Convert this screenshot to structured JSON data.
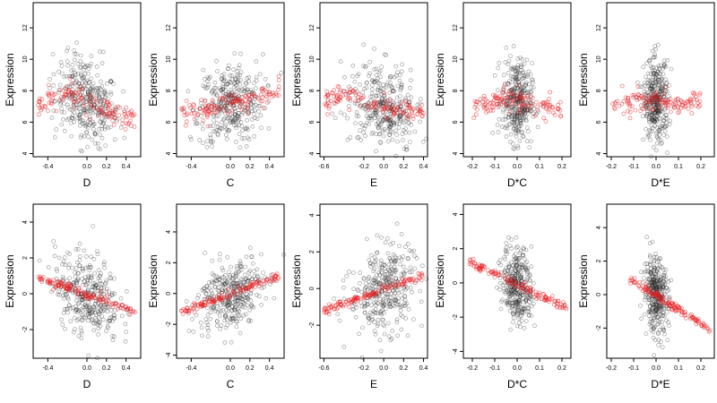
{
  "colors": {
    "observed": "#222222",
    "fitted": "#e8191e",
    "frame": "#000000"
  },
  "chart_data": [
    {
      "type": "scatter",
      "xlabel": "D",
      "ylabel": "Expression",
      "xlim": [
        -0.55,
        0.55
      ],
      "ylim": [
        3.8,
        13.6
      ],
      "x_ticks": [
        -0.4,
        0.0,
        0.2,
        0.4
      ],
      "x_tick_labels": [
        "-0.4",
        "0.0",
        "0.2",
        "0.4"
      ],
      "y_ticks": [
        4,
        6,
        8,
        10,
        12
      ],
      "y_tick_labels": [
        "4",
        "6",
        "8",
        "10",
        "12"
      ],
      "series": [
        {
          "role": "observed",
          "color": "#222222"
        },
        {
          "role": "fitted",
          "color": "#e8191e"
        }
      ],
      "fit": {
        "kind": "profile",
        "points": [
          [
            -0.5,
            7.0
          ],
          [
            -0.4,
            7.3
          ],
          [
            -0.3,
            7.5
          ],
          [
            -0.2,
            7.9
          ],
          [
            -0.1,
            7.8
          ],
          [
            0.0,
            7.3
          ],
          [
            0.1,
            7.0
          ],
          [
            0.2,
            6.8
          ],
          [
            0.3,
            6.5
          ],
          [
            0.4,
            6.3
          ],
          [
            0.5,
            6.2
          ]
        ]
      },
      "cloud": {
        "x_center": 0.0,
        "x_spread": 0.3,
        "y_spread": 1.3,
        "n": 350
      }
    },
    {
      "type": "scatter",
      "xlabel": "C",
      "ylabel": "Expression",
      "xlim": [
        -0.55,
        0.55
      ],
      "ylim": [
        3.8,
        13.6
      ],
      "x_ticks": [
        -0.4,
        0.0,
        0.2,
        0.4
      ],
      "x_tick_labels": [
        "-0.4",
        "0.0",
        "0.2",
        "0.4"
      ],
      "y_ticks": [
        4,
        6,
        8,
        10,
        12
      ],
      "y_tick_labels": [
        "4",
        "6",
        "8",
        "10",
        "12"
      ],
      "series": [
        {
          "role": "observed",
          "color": "#222222"
        },
        {
          "role": "fitted",
          "color": "#e8191e"
        }
      ],
      "fit": {
        "kind": "profile",
        "points": [
          [
            -0.5,
            6.5
          ],
          [
            -0.4,
            6.6
          ],
          [
            -0.3,
            6.8
          ],
          [
            -0.2,
            6.9
          ],
          [
            -0.1,
            7.0
          ],
          [
            0.0,
            7.2
          ],
          [
            0.1,
            7.3
          ],
          [
            0.2,
            7.4
          ],
          [
            0.3,
            7.6
          ],
          [
            0.4,
            7.8
          ],
          [
            0.5,
            8.1
          ]
        ]
      },
      "cloud": {
        "x_center": 0.0,
        "x_spread": 0.3,
        "y_spread": 1.3,
        "n": 350
      }
    },
    {
      "type": "scatter",
      "xlabel": "E",
      "ylabel": "Expression",
      "xlim": [
        -0.64,
        0.44
      ],
      "ylim": [
        3.8,
        13.6
      ],
      "x_ticks": [
        -0.6,
        -0.2,
        0.0,
        0.2,
        0.4
      ],
      "x_tick_labels": [
        "-0.6",
        "-0.2",
        "0.0",
        "0.2",
        "0.4"
      ],
      "y_ticks": [
        4,
        6,
        8,
        10,
        12
      ],
      "y_tick_labels": [
        "4",
        "6",
        "8",
        "10",
        "12"
      ],
      "series": [
        {
          "role": "observed",
          "color": "#222222"
        },
        {
          "role": "fitted",
          "color": "#e8191e"
        }
      ],
      "fit": {
        "kind": "profile",
        "points": [
          [
            -0.6,
            7.2
          ],
          [
            -0.5,
            7.6
          ],
          [
            -0.4,
            7.7
          ],
          [
            -0.3,
            7.6
          ],
          [
            -0.2,
            7.4
          ],
          [
            -0.1,
            7.1
          ],
          [
            0.0,
            6.9
          ],
          [
            0.1,
            6.8
          ],
          [
            0.2,
            6.6
          ],
          [
            0.3,
            6.5
          ],
          [
            0.4,
            6.4
          ]
        ]
      },
      "cloud": {
        "x_center": 0.0,
        "x_spread": 0.3,
        "y_spread": 1.3,
        "n": 350
      }
    },
    {
      "type": "scatter",
      "xlabel": "D*C",
      "ylabel": "Expression",
      "xlim": [
        -0.24,
        0.24
      ],
      "ylim": [
        3.8,
        13.6
      ],
      "x_ticks": [
        -0.2,
        -0.1,
        0.0,
        0.1,
        0.2
      ],
      "x_tick_labels": [
        "-0.2",
        "-0.1",
        "0.0",
        "0.1",
        "0.2"
      ],
      "y_ticks": [
        4,
        6,
        8,
        10,
        12
      ],
      "y_tick_labels": [
        "4",
        "6",
        "8",
        "10",
        "12"
      ],
      "series": [
        {
          "role": "observed",
          "color": "#222222"
        },
        {
          "role": "fitted",
          "color": "#e8191e"
        }
      ],
      "fit": {
        "kind": "profile",
        "points": [
          [
            -0.2,
            7.0
          ],
          [
            -0.1,
            7.3
          ],
          [
            -0.05,
            7.5
          ],
          [
            0.0,
            7.4
          ],
          [
            0.05,
            7.2
          ],
          [
            0.1,
            7.0
          ],
          [
            0.2,
            6.8
          ]
        ]
      },
      "cloud": {
        "x_center": 0.0,
        "x_spread": 0.06,
        "y_spread": 1.3,
        "n": 350
      }
    },
    {
      "type": "scatter",
      "xlabel": "D*E",
      "ylabel": "Expression",
      "xlim": [
        -0.22,
        0.26
      ],
      "ylim": [
        3.8,
        13.6
      ],
      "x_ticks": [
        -0.2,
        -0.1,
        0.0,
        0.1,
        0.2
      ],
      "x_tick_labels": [
        "-0.2",
        "-0.1",
        "0.0",
        "0.1",
        "0.2"
      ],
      "y_ticks": [
        4,
        6,
        8,
        10,
        12
      ],
      "y_tick_labels": [
        "4",
        "6",
        "8",
        "10",
        "12"
      ],
      "series": [
        {
          "role": "observed",
          "color": "#222222"
        },
        {
          "role": "fitted",
          "color": "#e8191e"
        }
      ],
      "fit": {
        "kind": "profile",
        "points": [
          [
            -0.2,
            7.0
          ],
          [
            -0.1,
            7.3
          ],
          [
            -0.05,
            7.5
          ],
          [
            0.0,
            7.4
          ],
          [
            0.05,
            7.2
          ],
          [
            0.1,
            7.0
          ],
          [
            0.2,
            7.5
          ]
        ]
      },
      "cloud": {
        "x_center": 0.0,
        "x_spread": 0.05,
        "y_spread": 1.3,
        "n": 350
      }
    },
    {
      "type": "scatter",
      "xlabel": "D",
      "ylabel": "Expression",
      "xlim": [
        -0.55,
        0.55
      ],
      "ylim": [
        -3.6,
        5.0
      ],
      "x_ticks": [
        -0.4,
        0.0,
        0.2,
        0.4
      ],
      "x_tick_labels": [
        "-0.4",
        "0.0",
        "0.2",
        "0.4"
      ],
      "y_ticks": [
        -2,
        0,
        2,
        4
      ],
      "y_tick_labels": [
        "-2",
        "0",
        "2",
        "4"
      ],
      "series": [
        {
          "role": "observed",
          "color": "#222222"
        },
        {
          "role": "fitted",
          "color": "#e8191e"
        }
      ],
      "fit": {
        "kind": "line",
        "x_range": [
          -0.5,
          0.5
        ],
        "slope": -1.9,
        "intercept": -0.05
      },
      "cloud": {
        "x_center": 0.0,
        "x_spread": 0.3,
        "y_spread": 1.1,
        "n": 350
      }
    },
    {
      "type": "scatter",
      "xlabel": "C",
      "ylabel": "Expression",
      "xlim": [
        -0.55,
        0.55
      ],
      "ylim": [
        -4.2,
        5.8
      ],
      "x_ticks": [
        -0.4,
        0.0,
        0.2,
        0.4
      ],
      "x_tick_labels": [
        "-0.4",
        "0.0",
        "0.2",
        "0.4"
      ],
      "y_ticks": [
        -4,
        -2,
        0,
        2,
        4
      ],
      "y_tick_labels": [
        "-4",
        "-2",
        "0",
        "2",
        "4"
      ],
      "series": [
        {
          "role": "observed",
          "color": "#222222"
        },
        {
          "role": "fitted",
          "color": "#e8191e"
        }
      ],
      "fit": {
        "kind": "line",
        "x_range": [
          -0.5,
          0.5
        ],
        "slope": 2.3,
        "intercept": -0.05
      },
      "cloud": {
        "x_center": 0.0,
        "x_spread": 0.3,
        "y_spread": 1.1,
        "n": 350
      }
    },
    {
      "type": "scatter",
      "xlabel": "E",
      "ylabel": "Expression",
      "xlim": [
        -0.64,
        0.44
      ],
      "ylim": [
        -3.8,
        4.6
      ],
      "x_ticks": [
        -0.6,
        -0.2,
        0.0,
        0.2,
        0.4
      ],
      "x_tick_labels": [
        "-0.6",
        "-0.2",
        "0.0",
        "0.2",
        "0.4"
      ],
      "y_ticks": [
        -2,
        0,
        2,
        4
      ],
      "y_tick_labels": [
        "-2",
        "0",
        "2",
        "4"
      ],
      "series": [
        {
          "role": "observed",
          "color": "#222222"
        },
        {
          "role": "fitted",
          "color": "#e8191e"
        }
      ],
      "fit": {
        "kind": "line",
        "x_range": [
          -0.6,
          0.4
        ],
        "slope": 1.9,
        "intercept": -0.05
      },
      "cloud": {
        "x_center": 0.0,
        "x_spread": 0.3,
        "y_spread": 1.2,
        "n": 350
      }
    },
    {
      "type": "scatter",
      "xlabel": "D*C",
      "ylabel": "Expression",
      "xlim": [
        -0.24,
        0.24
      ],
      "ylim": [
        -4.4,
        4.6
      ],
      "x_ticks": [
        -0.2,
        -0.1,
        0.0,
        0.1,
        0.2
      ],
      "x_tick_labels": [
        "-0.2",
        "-0.1",
        "0.0",
        "0.1",
        "0.2"
      ],
      "y_ticks": [
        -4,
        -2,
        0,
        2,
        4
      ],
      "y_tick_labels": [
        "-4",
        "-2",
        "0",
        "2",
        "4"
      ],
      "series": [
        {
          "role": "observed",
          "color": "#222222"
        },
        {
          "role": "fitted",
          "color": "#e8191e"
        }
      ],
      "fit": {
        "kind": "line",
        "x_range": [
          -0.22,
          0.22
        ],
        "slope": -6.2,
        "intercept": -0.1
      },
      "cloud": {
        "x_center": 0.0,
        "x_spread": 0.06,
        "y_spread": 1.1,
        "n": 350
      }
    },
    {
      "type": "scatter",
      "xlabel": "D*E",
      "ylabel": "Expression",
      "xlim": [
        -0.22,
        0.26
      ],
      "ylim": [
        -3.8,
        5.4
      ],
      "x_ticks": [
        -0.2,
        -0.1,
        0.0,
        0.1,
        0.2
      ],
      "x_tick_labels": [
        "-0.2",
        "-0.1",
        "0.0",
        "0.1",
        "0.2"
      ],
      "y_ticks": [
        -2,
        0,
        2,
        4
      ],
      "y_tick_labels": [
        "-2",
        "0",
        "2",
        "4"
      ],
      "series": [
        {
          "role": "observed",
          "color": "#222222"
        },
        {
          "role": "fitted",
          "color": "#e8191e"
        }
      ],
      "fit": {
        "kind": "line",
        "x_range": [
          -0.12,
          0.24
        ],
        "slope": -8.5,
        "intercept": -0.05
      },
      "cloud": {
        "x_center": 0.0,
        "x_spread": 0.05,
        "y_spread": 1.1,
        "n": 350
      }
    }
  ]
}
